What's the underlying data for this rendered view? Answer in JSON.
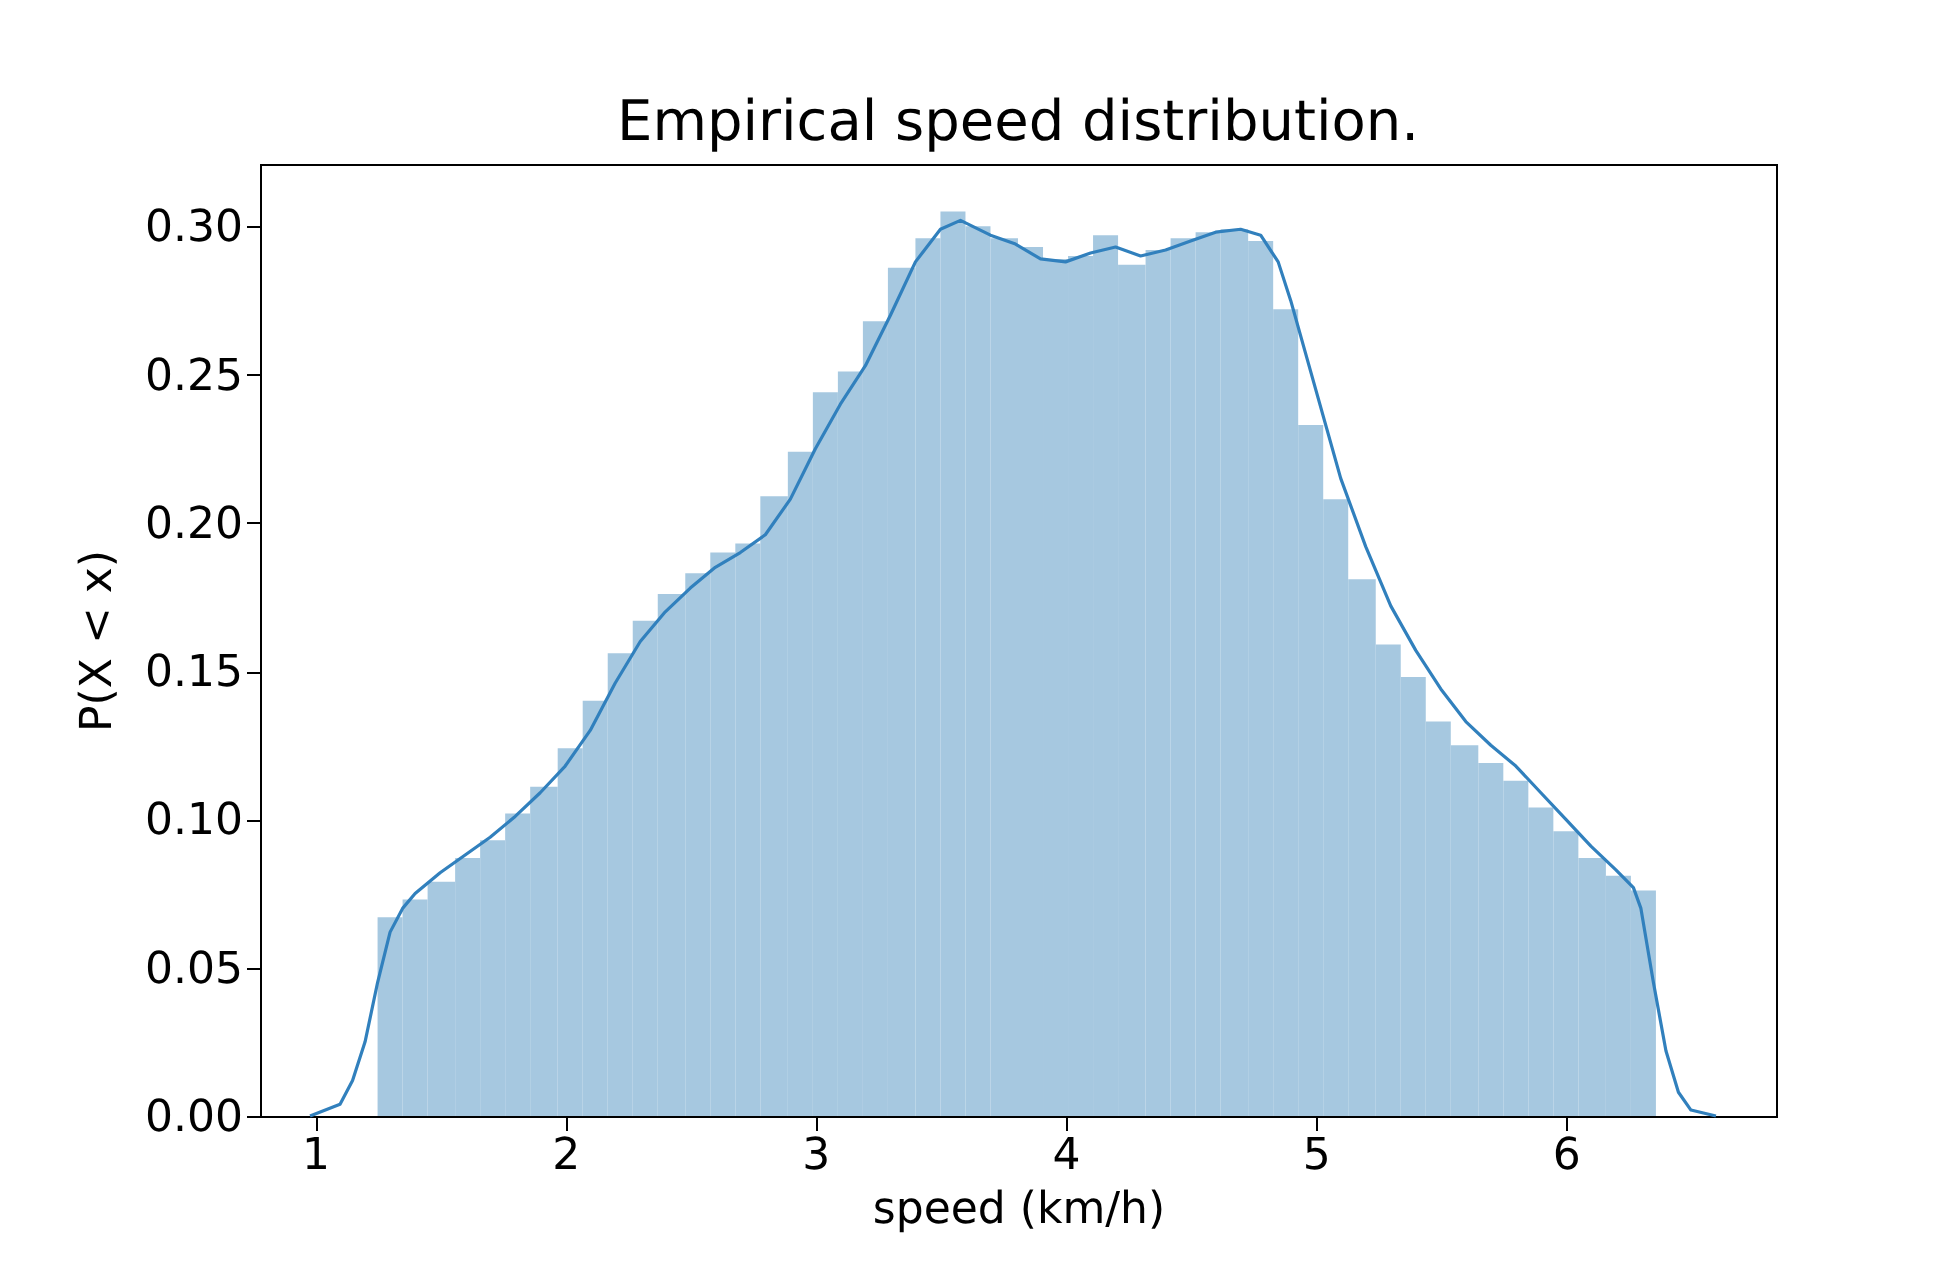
{
  "chart_data": {
    "type": "histogram",
    "title": "Empirical speed distribution.",
    "xlabel": "speed (km/h)",
    "ylabel": "P(X < x)",
    "bins": [
      1.25,
      1.35,
      1.45,
      1.56,
      1.66,
      1.76,
      1.86,
      1.97,
      2.07,
      2.17,
      2.27,
      2.37,
      2.48,
      2.58,
      2.68,
      2.78,
      2.89,
      2.99,
      3.09,
      3.19,
      3.29,
      3.4,
      3.5,
      3.6,
      3.7,
      3.81,
      3.91,
      4.01,
      4.11,
      4.21,
      4.32,
      4.42,
      4.52,
      4.62,
      4.73,
      4.83,
      4.93,
      5.03,
      5.13,
      5.24,
      5.34,
      5.44,
      5.54,
      5.65,
      5.75,
      5.85,
      5.95,
      6.05,
      6.16,
      6.26,
      6.36
    ],
    "values": [
      0.067,
      0.073,
      0.079,
      0.087,
      0.093,
      0.102,
      0.111,
      0.124,
      0.14,
      0.156,
      0.167,
      0.176,
      0.183,
      0.19,
      0.193,
      0.209,
      0.224,
      0.244,
      0.251,
      0.268,
      0.286,
      0.296,
      0.305,
      0.3,
      0.296,
      0.293,
      0.289,
      0.29,
      0.297,
      0.287,
      0.292,
      0.296,
      0.298,
      0.299,
      0.295,
      0.272,
      0.233,
      0.208,
      0.181,
      0.159,
      0.148,
      0.133,
      0.125,
      0.119,
      0.113,
      0.104,
      0.096,
      0.087,
      0.081,
      0.076
    ],
    "color": "#a6c8e0",
    "series": [
      {
        "type": "line",
        "color": "#3180bd",
        "x": [
          0.98,
          1.1,
          1.15,
          1.2,
          1.25,
          1.3,
          1.35,
          1.4,
          1.5,
          1.6,
          1.7,
          1.8,
          1.9,
          2.0,
          2.1,
          2.2,
          2.3,
          2.4,
          2.5,
          2.6,
          2.7,
          2.8,
          2.9,
          3.0,
          3.1,
          3.2,
          3.3,
          3.4,
          3.5,
          3.58,
          3.7,
          3.8,
          3.9,
          4.0,
          4.1,
          4.2,
          4.3,
          4.4,
          4.5,
          4.6,
          4.7,
          4.78,
          4.85,
          4.9,
          5.0,
          5.1,
          5.2,
          5.3,
          5.4,
          5.5,
          5.6,
          5.7,
          5.8,
          5.9,
          6.0,
          6.1,
          6.2,
          6.27,
          6.3,
          6.35,
          6.4,
          6.45,
          6.5,
          6.6
        ],
        "values": [
          0,
          0.004,
          0.012,
          0.025,
          0.045,
          0.062,
          0.07,
          0.075,
          0.082,
          0.088,
          0.094,
          0.101,
          0.109,
          0.118,
          0.13,
          0.146,
          0.16,
          0.17,
          0.178,
          0.185,
          0.19,
          0.196,
          0.208,
          0.225,
          0.24,
          0.253,
          0.27,
          0.288,
          0.299,
          0.302,
          0.297,
          0.294,
          0.289,
          0.288,
          0.291,
          0.293,
          0.29,
          0.292,
          0.295,
          0.298,
          0.299,
          0.297,
          0.288,
          0.275,
          0.245,
          0.215,
          0.192,
          0.172,
          0.157,
          0.144,
          0.133,
          0.125,
          0.118,
          0.109,
          0.1,
          0.091,
          0.083,
          0.077,
          0.07,
          0.045,
          0.022,
          0.008,
          0.002,
          0
        ]
      }
    ],
    "xlim": [
      0.78,
      6.84
    ],
    "ylim": [
      0,
      0.321
    ],
    "xticks": [
      1,
      2,
      3,
      4,
      5,
      6
    ],
    "yticks": [
      {
        "value": 0,
        "label": "0.00"
      },
      {
        "value": 0.05,
        "label": "0.05"
      },
      {
        "value": 0.1,
        "label": "0.10"
      },
      {
        "value": 0.15,
        "label": "0.15"
      },
      {
        "value": 0.2,
        "label": "0.20"
      },
      {
        "value": 0.25,
        "label": "0.25"
      },
      {
        "value": 0.3,
        "label": "0.30"
      }
    ],
    "grid": false
  }
}
